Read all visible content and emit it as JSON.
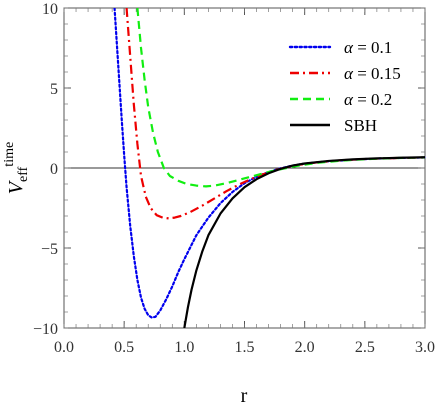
{
  "chart_data": {
    "type": "line",
    "xlabel": "r",
    "ylabel": {
      "main": "V",
      "subscript": "eff",
      "superscript": "time"
    },
    "xlim": [
      0.0,
      3.0
    ],
    "ylim": [
      -10,
      10
    ],
    "x_ticks": [
      "0.0",
      "0.5",
      "1.0",
      "1.5",
      "2.0",
      "2.5",
      "3.0"
    ],
    "y_ticks": [
      "10",
      "5",
      "0",
      "−5",
      "−10"
    ],
    "grid": false,
    "zero_line": true,
    "legend_position": "top-right",
    "series": [
      {
        "name": "α = 0.1",
        "color": "#0000ee",
        "dash": "dotted",
        "points": [
          [
            0.42,
            10
          ],
          [
            0.45,
            6.5
          ],
          [
            0.48,
            3.0
          ],
          [
            0.5,
            0.8
          ],
          [
            0.52,
            -1.2
          ],
          [
            0.55,
            -3.6
          ],
          [
            0.58,
            -5.5
          ],
          [
            0.61,
            -7.0
          ],
          [
            0.64,
            -8.1
          ],
          [
            0.67,
            -8.8
          ],
          [
            0.7,
            -9.2
          ],
          [
            0.73,
            -9.35
          ],
          [
            0.76,
            -9.3
          ],
          [
            0.8,
            -8.9
          ],
          [
            0.85,
            -8.2
          ],
          [
            0.9,
            -7.4
          ],
          [
            0.95,
            -6.5
          ],
          [
            1.0,
            -5.7
          ],
          [
            1.1,
            -4.2
          ],
          [
            1.2,
            -3.1
          ],
          [
            1.3,
            -2.2
          ],
          [
            1.4,
            -1.5
          ],
          [
            1.5,
            -0.95
          ],
          [
            1.6,
            -0.55
          ],
          [
            1.7,
            -0.25
          ],
          [
            1.8,
            -0.02
          ],
          [
            1.9,
            0.15
          ],
          [
            2.0,
            0.28
          ],
          [
            2.2,
            0.42
          ],
          [
            2.4,
            0.52
          ],
          [
            2.6,
            0.59
          ],
          [
            2.8,
            0.63
          ],
          [
            3.0,
            0.66
          ]
        ]
      },
      {
        "name": "α = 0.15",
        "color": "#ee0000",
        "dash": "dash-dot",
        "points": [
          [
            0.52,
            10
          ],
          [
            0.55,
            7.0
          ],
          [
            0.58,
            4.0
          ],
          [
            0.61,
            1.5
          ],
          [
            0.64,
            -0.5
          ],
          [
            0.68,
            -1.8
          ],
          [
            0.72,
            -2.5
          ],
          [
            0.77,
            -2.95
          ],
          [
            0.82,
            -3.1
          ],
          [
            0.87,
            -3.15
          ],
          [
            0.92,
            -3.1
          ],
          [
            0.97,
            -3.0
          ],
          [
            1.05,
            -2.75
          ],
          [
            1.15,
            -2.35
          ],
          [
            1.25,
            -1.9
          ],
          [
            1.35,
            -1.45
          ],
          [
            1.45,
            -1.05
          ],
          [
            1.55,
            -0.7
          ],
          [
            1.65,
            -0.4
          ],
          [
            1.75,
            -0.15
          ],
          [
            1.85,
            0.05
          ],
          [
            1.95,
            0.2
          ],
          [
            2.1,
            0.35
          ],
          [
            2.3,
            0.48
          ],
          [
            2.5,
            0.56
          ],
          [
            2.7,
            0.61
          ],
          [
            2.9,
            0.65
          ],
          [
            3.0,
            0.66
          ]
        ]
      },
      {
        "name": "α = 0.2",
        "color": "#11ee11",
        "dash": "dashed",
        "points": [
          [
            0.61,
            10
          ],
          [
            0.64,
            7.5
          ],
          [
            0.67,
            5.5
          ],
          [
            0.7,
            3.8
          ],
          [
            0.74,
            2.2
          ],
          [
            0.78,
            1.0
          ],
          [
            0.83,
            0.0
          ],
          [
            0.88,
            -0.5
          ],
          [
            0.95,
            -0.8
          ],
          [
            1.02,
            -1.0
          ],
          [
            1.1,
            -1.1
          ],
          [
            1.18,
            -1.15
          ],
          [
            1.25,
            -1.1
          ],
          [
            1.35,
            -0.95
          ],
          [
            1.45,
            -0.75
          ],
          [
            1.55,
            -0.55
          ],
          [
            1.65,
            -0.35
          ],
          [
            1.75,
            -0.15
          ],
          [
            1.85,
            0.0
          ],
          [
            1.95,
            0.15
          ],
          [
            2.1,
            0.32
          ],
          [
            2.3,
            0.46
          ],
          [
            2.5,
            0.55
          ],
          [
            2.7,
            0.61
          ],
          [
            2.9,
            0.65
          ],
          [
            3.0,
            0.66
          ]
        ]
      },
      {
        "name": "SBH",
        "color": "#000000",
        "dash": "solid",
        "points": [
          [
            1.0,
            -10
          ],
          [
            1.03,
            -8.7
          ],
          [
            1.06,
            -7.6
          ],
          [
            1.1,
            -6.4
          ],
          [
            1.15,
            -5.2
          ],
          [
            1.2,
            -4.2
          ],
          [
            1.3,
            -2.85
          ],
          [
            1.4,
            -1.9
          ],
          [
            1.5,
            -1.2
          ],
          [
            1.6,
            -0.7
          ],
          [
            1.7,
            -0.33
          ],
          [
            1.8,
            -0.05
          ],
          [
            1.9,
            0.15
          ],
          [
            2.0,
            0.28
          ],
          [
            2.2,
            0.44
          ],
          [
            2.4,
            0.54
          ],
          [
            2.6,
            0.6
          ],
          [
            2.8,
            0.64
          ],
          [
            3.0,
            0.67
          ]
        ]
      }
    ]
  }
}
